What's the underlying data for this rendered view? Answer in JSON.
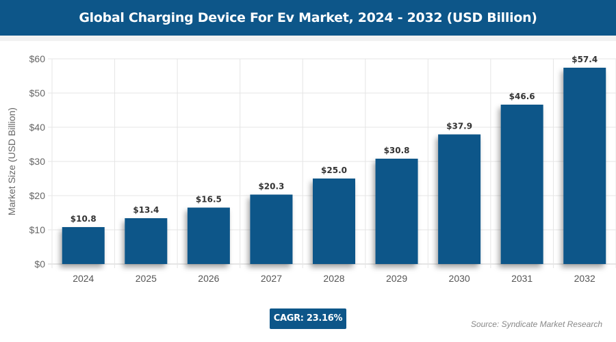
{
  "header": {
    "title": "Global Charging Device For Ev Market, 2024 - 2032 (USD Billion)"
  },
  "chart_data": {
    "type": "bar",
    "title": "Global Charging Device For Ev Market, 2024 - 2032 (USD Billion)",
    "categories": [
      "2024",
      "2025",
      "2026",
      "2027",
      "2028",
      "2029",
      "2030",
      "2031",
      "2032"
    ],
    "values": [
      10.8,
      13.4,
      16.5,
      20.3,
      25.0,
      30.8,
      37.9,
      46.6,
      57.4
    ],
    "data_labels": [
      "$10.8",
      "$13.4",
      "$16.5",
      "$20.3",
      "$25.0",
      "$30.8",
      "$37.9",
      "$46.6",
      "$57.4"
    ],
    "ylabel": "Market Size (USD Billion)",
    "xlabel": "",
    "ylim": [
      0,
      60
    ],
    "yticks": [
      "$0",
      "$10",
      "$20",
      "$30",
      "$40",
      "$50",
      "$60"
    ],
    "grid": true,
    "bar_color": "#0d5689"
  },
  "footer": {
    "cagr": "CAGR: 23.16%",
    "source": "Source: Syndicate Market Research"
  }
}
